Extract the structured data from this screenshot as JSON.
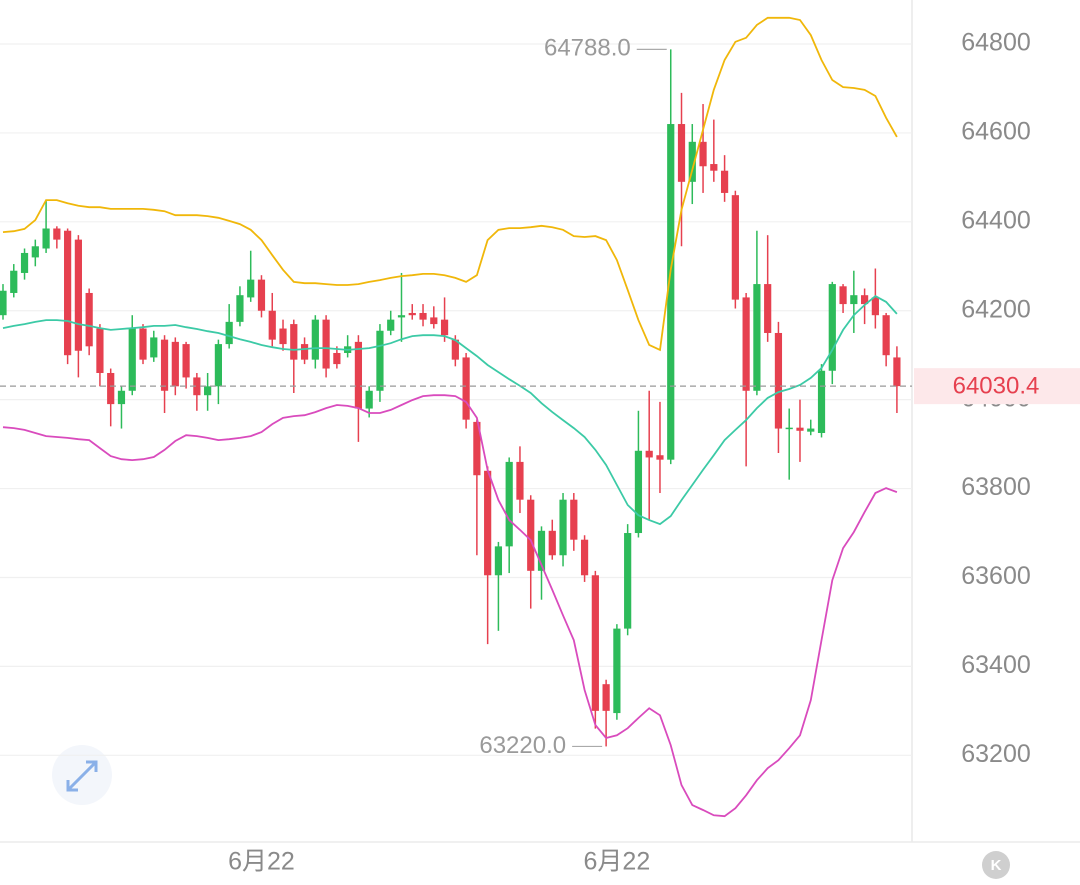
{
  "chart_data": {
    "type": "candlestick",
    "categories": [
      null,
      null,
      null,
      null,
      null,
      null,
      null,
      null,
      null,
      null,
      null,
      null,
      null,
      null,
      null,
      null,
      null,
      null,
      null,
      null,
      null,
      null,
      null,
      null,
      "6月22",
      null,
      null,
      null,
      null,
      null,
      null,
      null,
      null,
      null,
      null,
      null,
      null,
      null,
      null,
      null,
      null,
      null,
      null,
      null,
      null,
      null,
      null,
      null,
      null,
      null,
      null,
      null,
      null,
      null,
      null,
      null,
      null,
      "6月22",
      null,
      null,
      null,
      null,
      null,
      null,
      null,
      null,
      null,
      null,
      null,
      null,
      null,
      null,
      null,
      null,
      null,
      null,
      null,
      null,
      null,
      null,
      null,
      null,
      null,
      null
    ],
    "open": [
      64190,
      64240,
      64285,
      64320,
      64340,
      64385,
      64380,
      64360,
      64240,
      64160,
      64060,
      63990,
      64020,
      64160,
      64095,
      64135,
      64130,
      64125,
      64050,
      64010,
      64030,
      64125,
      64175,
      64230,
      64270,
      64200,
      64160,
      64170,
      64125,
      64090,
      64180,
      64105,
      64105,
      64130,
      63980,
      64020,
      64155,
      64185,
      64195,
      64195,
      64185,
      64180,
      64135,
      64095,
      63950,
      63840,
      63605,
      63670,
      63860,
      63775,
      63615,
      63705,
      63650,
      63775,
      63685,
      63605,
      63360,
      63295,
      63485,
      63700,
      63885,
      63875,
      63865,
      64620,
      64490,
      64580,
      64530,
      64515,
      64460,
      64230,
      64020,
      64260,
      64150,
      63935,
      63937,
      63928,
      63925,
      64065,
      64255,
      64215,
      64235,
      64230,
      64190,
      64095
    ],
    "high": [
      64260,
      64305,
      64340,
      64360,
      64450,
      64390,
      64385,
      64370,
      64250,
      64170,
      64070,
      64030,
      64190,
      64170,
      64155,
      64145,
      64140,
      64130,
      64060,
      64060,
      64135,
      64215,
      64255,
      64335,
      64280,
      64240,
      64180,
      64180,
      64140,
      64190,
      64190,
      64120,
      64145,
      64145,
      64030,
      64170,
      64200,
      64285,
      64215,
      64215,
      64210,
      64230,
      64145,
      64105,
      63955,
      63850,
      63680,
      63870,
      63895,
      63785,
      63715,
      63730,
      63790,
      63790,
      63695,
      63615,
      63370,
      63495,
      63720,
      63975,
      64020,
      63995,
      64788,
      64690,
      64620,
      64665,
      64630,
      64550,
      64470,
      64240,
      64380,
      64370,
      64175,
      63980,
      64000,
      63955,
      64080,
      64265,
      64260,
      64290,
      64250,
      64295,
      64195,
      64120
    ],
    "low": [
      64180,
      64230,
      64270,
      64300,
      64330,
      64340,
      64080,
      64050,
      64100,
      64030,
      63940,
      63935,
      64010,
      64080,
      64085,
      63970,
      64010,
      64025,
      63975,
      63975,
      63990,
      64115,
      64165,
      64220,
      64185,
      64120,
      64110,
      64015,
      64080,
      64070,
      64050,
      64070,
      64095,
      63905,
      63960,
      63995,
      64145,
      64130,
      64180,
      64165,
      64160,
      64130,
      64075,
      63935,
      63650,
      63450,
      63480,
      63610,
      63745,
      63530,
      63550,
      63640,
      63625,
      63660,
      63590,
      63260,
      63220,
      63280,
      63470,
      63690,
      63730,
      63790,
      63855,
      64345,
      64440,
      64465,
      64490,
      64445,
      64205,
      63850,
      64010,
      64130,
      63880,
      63820,
      63860,
      63920,
      63915,
      64035,
      64195,
      64150,
      64170,
      64160,
      64075,
      63970
    ],
    "close": [
      64245,
      64290,
      64330,
      64345,
      64385,
      64360,
      64100,
      64110,
      64120,
      64060,
      63990,
      64020,
      64160,
      64090,
      64140,
      64020,
      64030,
      64050,
      64010,
      64030,
      64125,
      64175,
      64235,
      64270,
      64200,
      64135,
      64125,
      64090,
      64090,
      64180,
      64070,
      64080,
      64120,
      63980,
      64020,
      64155,
      64180,
      64190,
      64190,
      64180,
      64170,
      64145,
      64090,
      63955,
      63830,
      63605,
      63670,
      63860,
      63775,
      63615,
      63705,
      63650,
      63775,
      63685,
      63605,
      63300,
      63300,
      63485,
      63700,
      63885,
      63870,
      63865,
      64620,
      64490,
      64580,
      64525,
      64515,
      64465,
      64225,
      64020,
      64260,
      64150,
      63935,
      63937,
      63930,
      63935,
      64065,
      64260,
      64215,
      64235,
      64215,
      64190,
      64100,
      64030.4
    ],
    "up_color": "#2dbb5a",
    "down_color": "#e6404f",
    "bands": [
      {
        "color": "#f0b70a",
        "values": [
          64377,
          64379,
          64384,
          64404,
          64449,
          64449,
          64442,
          64436,
          64433,
          64433,
          64429,
          64429,
          64429,
          64429,
          64427,
          64424,
          64415,
          64415,
          64415,
          64413,
          64409,
          64402,
          64395,
          64382,
          64359,
          64325,
          64292,
          64265,
          64262,
          64262,
          64260,
          64258,
          64258,
          64260,
          64265,
          64269,
          64274,
          64278,
          64280,
          64283,
          64283,
          64280,
          64274,
          64265,
          64280,
          64359,
          64382,
          64386,
          64386,
          64388,
          64391,
          64388,
          64382,
          64368,
          64366,
          64368,
          64359,
          64314,
          64247,
          64179,
          64123,
          64112,
          64292,
          64427,
          64517,
          64607,
          64697,
          64764,
          64805,
          64814,
          64843,
          64859,
          64859,
          64859,
          64854,
          64820,
          64764,
          64719,
          64703,
          64701,
          64697,
          64683,
          64634,
          64591
        ]
      },
      {
        "color": "#3ccaa6",
        "values": [
          64161,
          64166,
          64170,
          64175,
          64179,
          64179,
          64177,
          64170,
          64166,
          64161,
          64157,
          64159,
          64161,
          64163,
          64166,
          64166,
          64168,
          64163,
          64159,
          64154,
          64150,
          64143,
          64136,
          64130,
          64123,
          64118,
          64114,
          64112,
          64114,
          64116,
          64116,
          64114,
          64112,
          64114,
          64116,
          64121,
          64127,
          64136,
          64143,
          64145,
          64145,
          64143,
          64134,
          64116,
          64098,
          64078,
          64062,
          64046,
          64031,
          64015,
          63992,
          63972,
          63954,
          63936,
          63916,
          63887,
          63853,
          63808,
          63763,
          63740,
          63729,
          63720,
          63738,
          63774,
          63808,
          63842,
          63875,
          63909,
          63932,
          63954,
          63981,
          64004,
          64017,
          64024,
          64033,
          64049,
          64071,
          64112,
          64157,
          64190,
          64213,
          64233,
          64220,
          64193
        ]
      },
      {
        "color": "#d94bbd",
        "values": [
          63938,
          63936,
          63932,
          63925,
          63918,
          63916,
          63914,
          63911,
          63909,
          63891,
          63873,
          63866,
          63864,
          63866,
          63871,
          63887,
          63907,
          63920,
          63918,
          63914,
          63909,
          63911,
          63914,
          63918,
          63927,
          63945,
          63959,
          63963,
          63965,
          63972,
          63981,
          63988,
          63986,
          63981,
          63970,
          63970,
          63977,
          63988,
          63999,
          64008,
          64010,
          64010,
          64008,
          63995,
          63959,
          63842,
          63774,
          63729,
          63707,
          63684,
          63628,
          63572,
          63515,
          63459,
          63347,
          63268,
          63239,
          63245,
          63261,
          63284,
          63306,
          63290,
          63223,
          63133,
          63088,
          63077,
          63065,
          63063,
          63081,
          63110,
          63144,
          63171,
          63189,
          63216,
          63245,
          63324,
          63459,
          63594,
          63666,
          63702,
          63747,
          63790,
          63801,
          63792
        ]
      }
    ],
    "ylim": [
      63005,
      64899
    ],
    "yticks": [
      63200,
      63400,
      63600,
      63800,
      64000,
      64200,
      64400,
      64600,
      64800
    ],
    "grid": true,
    "annotations": [
      {
        "value": 64788,
        "label": "64788.0",
        "index": 62
      },
      {
        "value": 63220,
        "label": "63220.0",
        "index": 56
      }
    ],
    "last_price": {
      "value": 64030.4,
      "label": "64030.4"
    }
  },
  "k_button": "K"
}
